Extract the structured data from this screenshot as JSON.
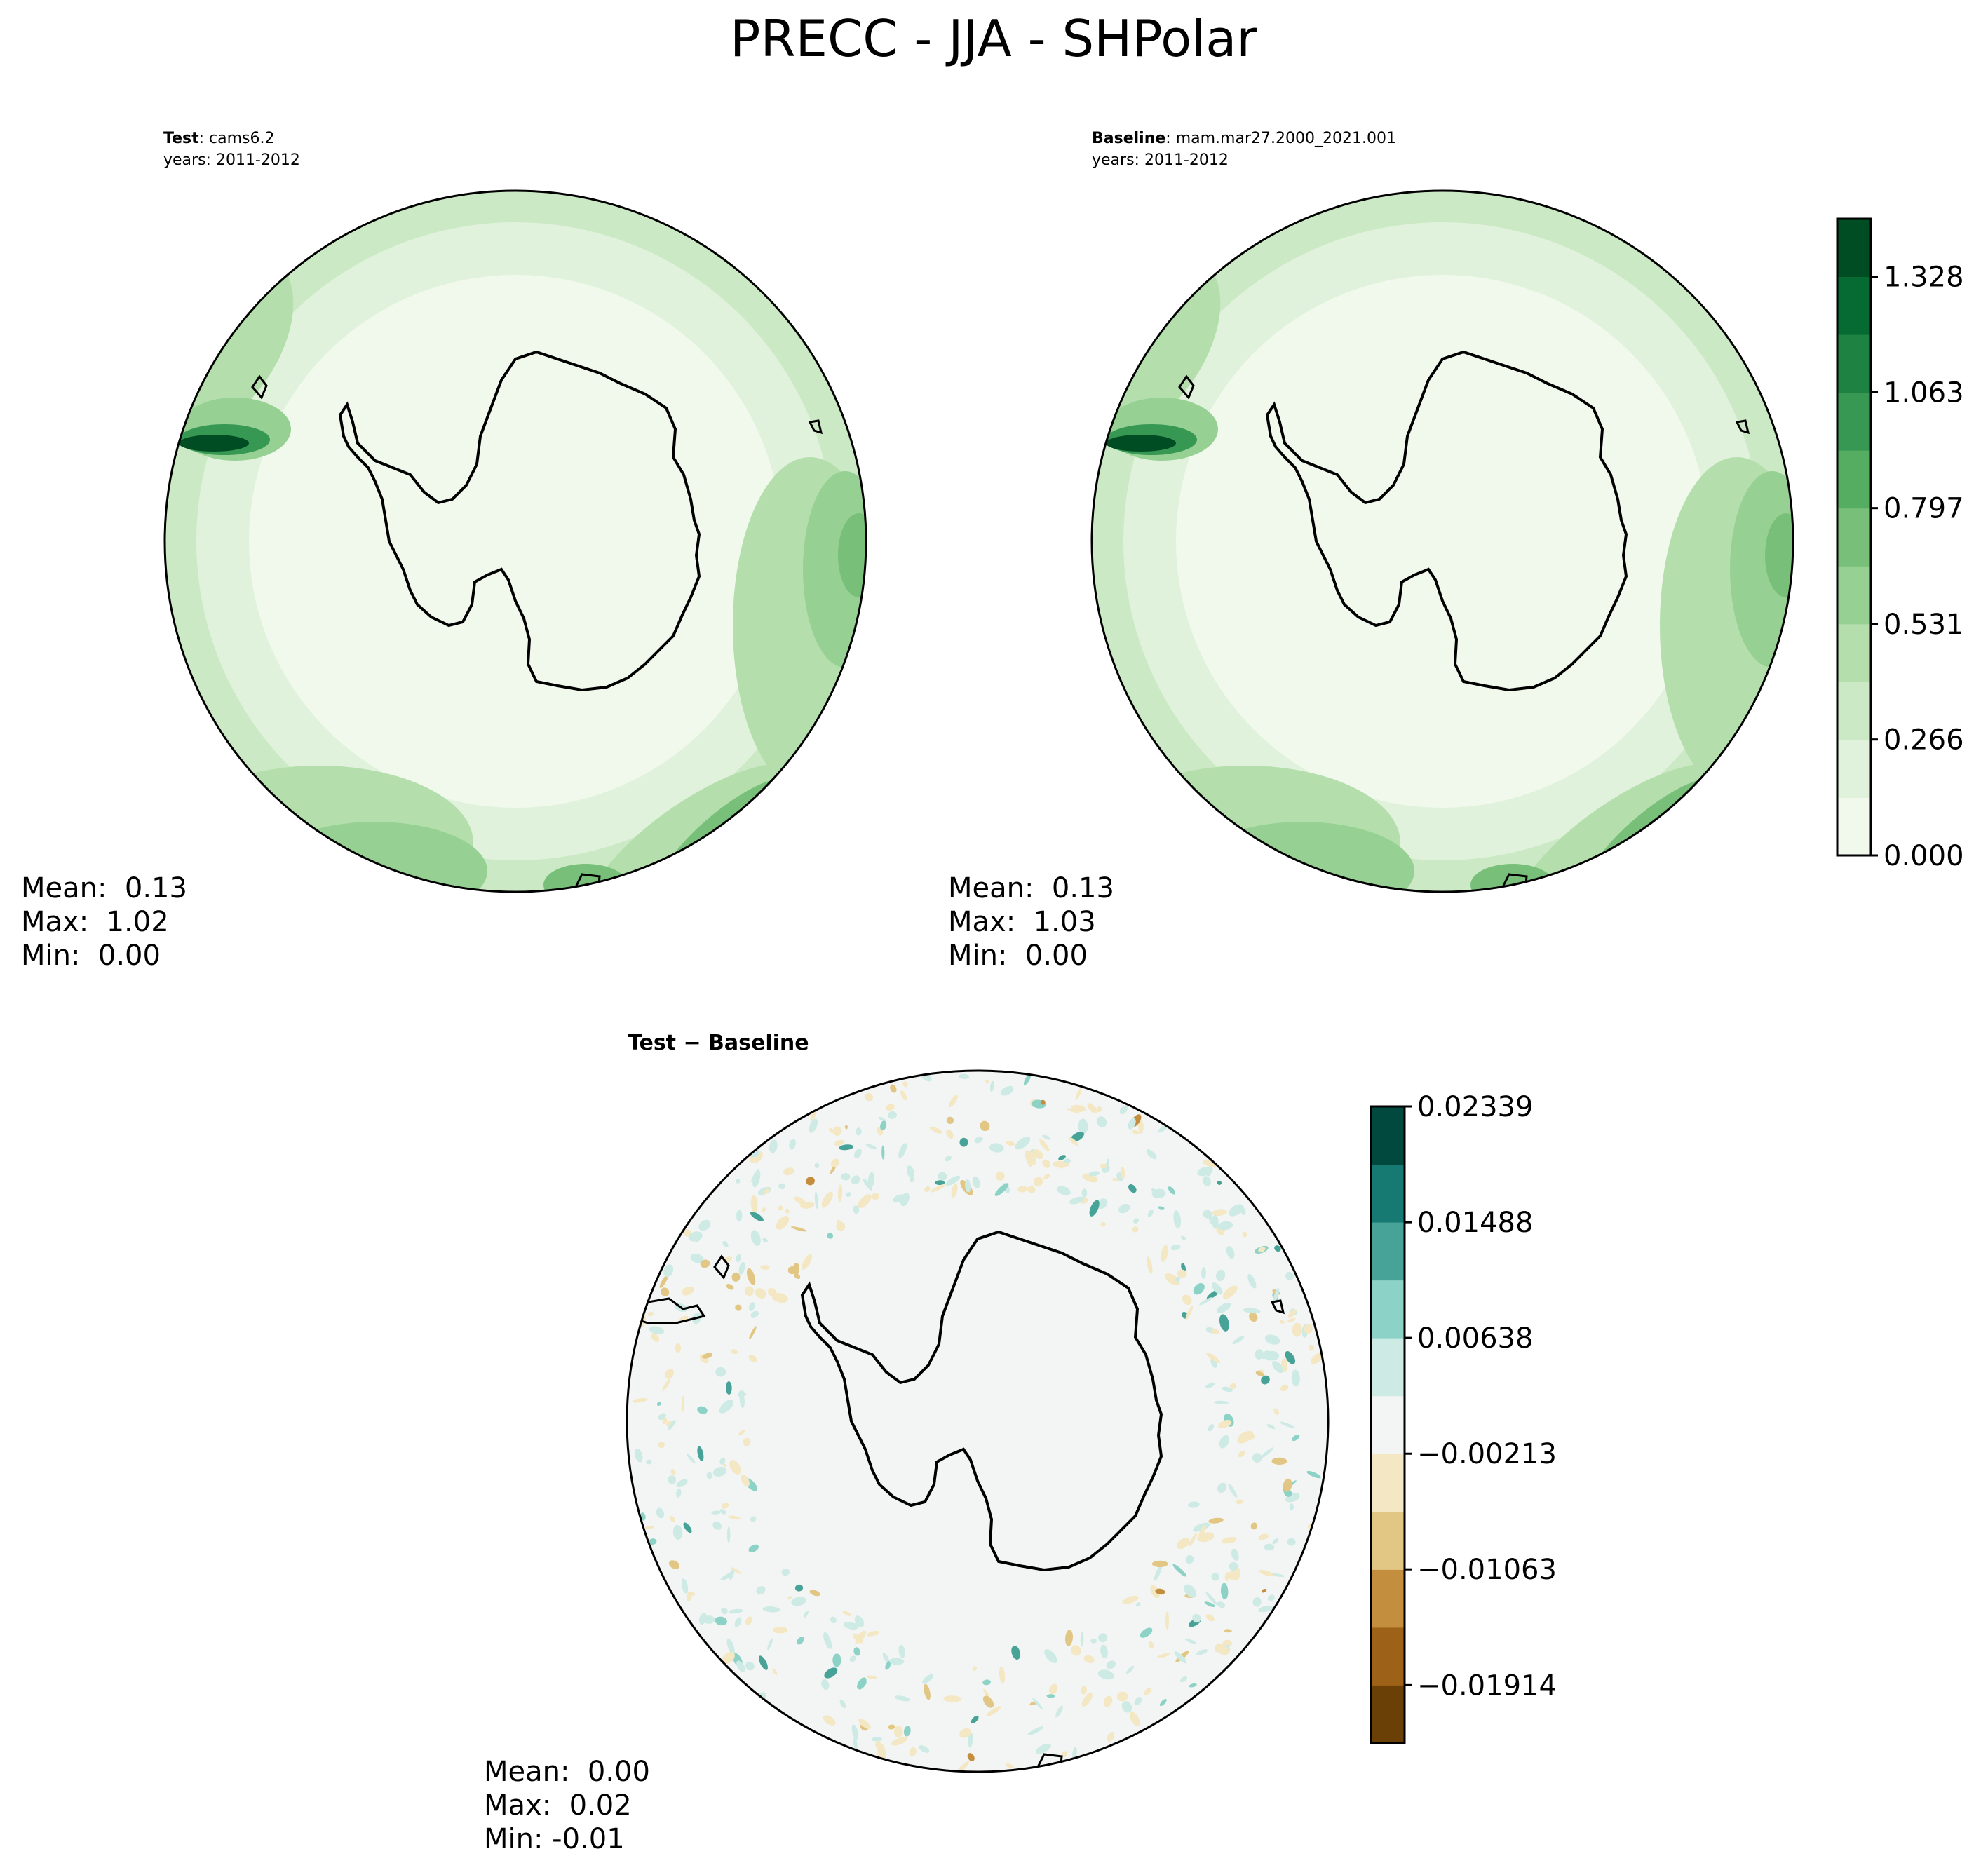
{
  "figure": {
    "title": "PRECC - JJA - SHPolar"
  },
  "panels": {
    "test": {
      "label_bold": "Test",
      "label_rest": ": cams6.2",
      "years": "years: 2011-2012",
      "stats": [
        "Mean:  0.13",
        "Max:  1.02",
        "Min:  0.00"
      ]
    },
    "baseline": {
      "label_bold": "Baseline",
      "label_rest": ": mam.mar27.2000_2021.001",
      "years": "years: 2011-2012",
      "stats": [
        "Mean:  0.13",
        "Max:  1.03",
        "Min:  0.00"
      ]
    },
    "diff": {
      "label_bold": "Test − Baseline",
      "stats": [
        "Mean:  0.00",
        "Max:  0.02",
        "Min: -0.01"
      ]
    }
  },
  "colors": {
    "greens": [
      "#f0f9ec",
      "#e0f2db",
      "#cce9c5",
      "#b4dfad",
      "#97d093",
      "#78c079",
      "#55ad62",
      "#379853",
      "#1e8242",
      "#066b32",
      "#004d24"
    ],
    "diverging": [
      "#6b4007",
      "#9d6117",
      "#c48e3f",
      "#e1c684",
      "#f4e7c3",
      "#f3f5f4",
      "#cdeae4",
      "#8dd2c6",
      "#47a397",
      "#167a72",
      "#01483e"
    ]
  },
  "chart_data": [
    {
      "type": "heatmap",
      "name": "test",
      "projection": "south-polar-stereographic",
      "colorbar": {
        "min": 0.0,
        "max": 1.461,
        "levels": 11,
        "tick_values": [
          0.0,
          0.266,
          0.531,
          0.797,
          1.063,
          1.328
        ],
        "tick_labels": [
          "0.000",
          "0.266",
          "0.531",
          "0.797",
          "1.063",
          "1.328"
        ]
      },
      "stats": {
        "mean": 0.13,
        "max": 1.02,
        "min": 0.0
      }
    },
    {
      "type": "heatmap",
      "name": "baseline",
      "projection": "south-polar-stereographic",
      "colorbar": {
        "min": 0.0,
        "max": 1.461,
        "levels": 11,
        "tick_values": [
          0.0,
          0.266,
          0.531,
          0.797,
          1.063,
          1.328
        ],
        "tick_labels": [
          "0.000",
          "0.266",
          "0.531",
          "0.797",
          "1.063",
          "1.328"
        ]
      },
      "stats": {
        "mean": 0.13,
        "max": 1.03,
        "min": 0.0
      }
    },
    {
      "type": "heatmap",
      "name": "diff",
      "projection": "south-polar-stereographic",
      "colorbar": {
        "min": -0.0234,
        "max": 0.02339,
        "levels": 11,
        "tick_values": [
          -0.01914,
          -0.01063,
          -0.00213,
          0.00638,
          0.01488,
          0.02339
        ],
        "tick_labels": [
          "−0.01914",
          "−0.01063",
          "−0.00213",
          "0.00638",
          "0.01488",
          "0.02339"
        ]
      },
      "stats": {
        "mean": 0.0,
        "max": 0.02,
        "min": -0.01
      }
    }
  ]
}
